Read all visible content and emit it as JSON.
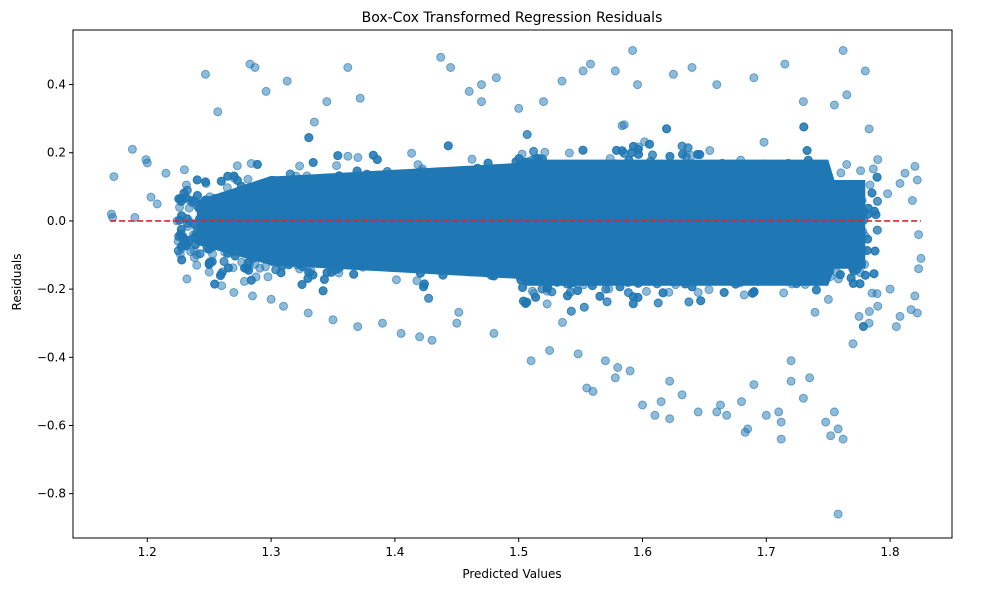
{
  "chart_data": {
    "type": "scatter",
    "title": "Box-Cox Transformed Regression Residuals",
    "xlabel": "Predicted Values",
    "ylabel": "Residuals",
    "xlim": [
      1.14,
      1.85
    ],
    "ylim": [
      -0.93,
      0.56
    ],
    "x_ticks": [
      1.2,
      1.3,
      1.4,
      1.5,
      1.6,
      1.7,
      1.8
    ],
    "x_tick_labels": [
      "1.2",
      "1.3",
      "1.4",
      "1.5",
      "1.6",
      "1.7",
      "1.8"
    ],
    "y_ticks": [
      -0.8,
      -0.6,
      -0.4,
      -0.2,
      0.0,
      0.2,
      0.4
    ],
    "y_tick_labels": [
      "−0.8",
      "−0.6",
      "−0.4",
      "−0.2",
      "0.0",
      "0.2",
      "0.4"
    ],
    "grid": false,
    "marker_color": "#1f77b4",
    "marker_alpha": 0.5,
    "reference_line": {
      "y": 0.0,
      "x_range": [
        1.17,
        1.825
      ],
      "color": "#d62728",
      "style": "dashed"
    },
    "series": [
      {
        "points": [
          [
            1.171,
            0.02
          ],
          [
            1.173,
            0.13
          ],
          [
            1.172,
            0.01
          ],
          [
            1.188,
            0.21
          ],
          [
            1.19,
            0.01
          ],
          [
            1.199,
            0.18
          ],
          [
            1.2,
            0.17
          ],
          [
            1.203,
            0.07
          ],
          [
            1.208,
            0.05
          ],
          [
            1.215,
            0.14
          ],
          [
            1.224,
            0.0
          ],
          [
            1.225,
            -0.06
          ],
          [
            1.226,
            0.04
          ],
          [
            1.23,
            0.15
          ],
          [
            1.232,
            -0.17
          ],
          [
            1.247,
            0.43
          ],
          [
            1.257,
            0.32
          ],
          [
            1.283,
            0.46
          ],
          [
            1.287,
            0.45
          ],
          [
            1.296,
            0.38
          ],
          [
            1.313,
            0.41
          ],
          [
            1.362,
            0.45
          ],
          [
            1.335,
            0.29
          ],
          [
            1.345,
            0.35
          ],
          [
            1.372,
            0.36
          ],
          [
            1.437,
            0.48
          ],
          [
            1.445,
            0.45
          ],
          [
            1.46,
            0.38
          ],
          [
            1.47,
            0.35
          ],
          [
            1.47,
            0.4
          ],
          [
            1.482,
            0.42
          ],
          [
            1.5,
            0.33
          ],
          [
            1.52,
            0.35
          ],
          [
            1.535,
            0.41
          ],
          [
            1.552,
            0.44
          ],
          [
            1.558,
            0.46
          ],
          [
            1.578,
            0.44
          ],
          [
            1.592,
            0.5
          ],
          [
            1.596,
            0.4
          ],
          [
            1.625,
            0.43
          ],
          [
            1.64,
            0.45
          ],
          [
            1.66,
            0.4
          ],
          [
            1.69,
            0.42
          ],
          [
            1.715,
            0.46
          ],
          [
            1.73,
            0.35
          ],
          [
            1.755,
            0.34
          ],
          [
            1.762,
            0.5
          ],
          [
            1.765,
            0.37
          ],
          [
            1.78,
            0.44
          ],
          [
            1.783,
            0.27
          ],
          [
            1.79,
            0.18
          ],
          [
            1.798,
            0.08
          ],
          [
            1.808,
            0.11
          ],
          [
            1.812,
            0.14
          ],
          [
            1.818,
            0.06
          ],
          [
            1.82,
            0.16
          ],
          [
            1.822,
            0.12
          ],
          [
            1.823,
            -0.04
          ],
          [
            1.825,
            -0.11
          ],
          [
            1.823,
            -0.14
          ],
          [
            1.817,
            -0.26
          ],
          [
            1.822,
            -0.27
          ],
          [
            1.82,
            -0.22
          ],
          [
            1.808,
            -0.28
          ],
          [
            1.805,
            -0.31
          ],
          [
            1.8,
            -0.2
          ],
          [
            1.79,
            -0.25
          ],
          [
            1.783,
            -0.3
          ],
          [
            1.775,
            -0.28
          ],
          [
            1.77,
            -0.36
          ],
          [
            1.762,
            -0.64
          ],
          [
            1.758,
            -0.61
          ],
          [
            1.755,
            -0.56
          ],
          [
            1.752,
            -0.63
          ],
          [
            1.758,
            -0.86
          ],
          [
            1.748,
            -0.59
          ],
          [
            1.73,
            -0.52
          ],
          [
            1.735,
            -0.46
          ],
          [
            1.72,
            -0.47
          ],
          [
            1.72,
            -0.41
          ],
          [
            1.712,
            -0.64
          ],
          [
            1.712,
            -0.59
          ],
          [
            1.71,
            -0.56
          ],
          [
            1.7,
            -0.57
          ],
          [
            1.69,
            -0.48
          ],
          [
            1.685,
            -0.61
          ],
          [
            1.683,
            -0.62
          ],
          [
            1.68,
            -0.53
          ],
          [
            1.668,
            -0.57
          ],
          [
            1.66,
            -0.56
          ],
          [
            1.663,
            -0.54
          ],
          [
            1.645,
            -0.56
          ],
          [
            1.632,
            -0.51
          ],
          [
            1.622,
            -0.58
          ],
          [
            1.622,
            -0.47
          ],
          [
            1.61,
            -0.57
          ],
          [
            1.615,
            -0.53
          ],
          [
            1.6,
            -0.54
          ],
          [
            1.59,
            -0.44
          ],
          [
            1.58,
            -0.43
          ],
          [
            1.578,
            -0.46
          ],
          [
            1.57,
            -0.41
          ],
          [
            1.56,
            -0.5
          ],
          [
            1.555,
            -0.49
          ],
          [
            1.548,
            -0.39
          ],
          [
            1.525,
            -0.38
          ],
          [
            1.51,
            -0.41
          ],
          [
            1.48,
            -0.33
          ],
          [
            1.45,
            -0.3
          ],
          [
            1.43,
            -0.35
          ],
          [
            1.42,
            -0.34
          ],
          [
            1.405,
            -0.33
          ],
          [
            1.39,
            -0.3
          ],
          [
            1.37,
            -0.31
          ],
          [
            1.35,
            -0.29
          ],
          [
            1.33,
            -0.27
          ],
          [
            1.31,
            -0.25
          ],
          [
            1.3,
            -0.23
          ],
          [
            1.285,
            -0.22
          ],
          [
            1.27,
            -0.21
          ],
          [
            1.26,
            -0.19
          ],
          [
            1.25,
            -0.15
          ],
          [
            1.24,
            -0.13
          ],
          [
            1.235,
            -0.09
          ],
          [
            1.228,
            -0.08
          ]
        ]
      }
    ]
  }
}
